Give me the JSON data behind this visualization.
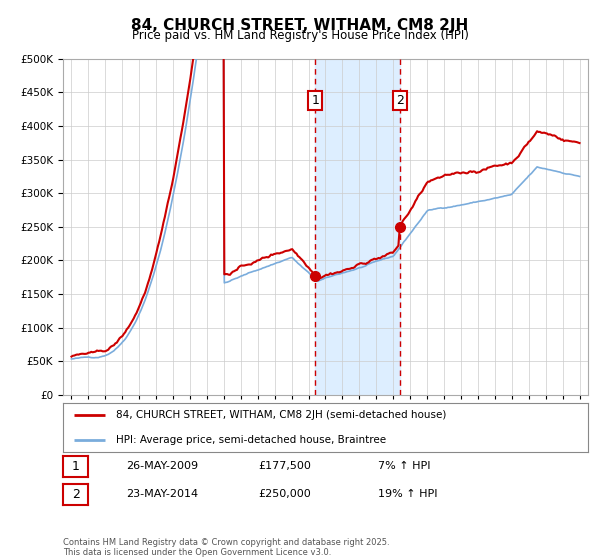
{
  "title": "84, CHURCH STREET, WITHAM, CM8 2JH",
  "subtitle": "Price paid vs. HM Land Registry's House Price Index (HPI)",
  "background_color": "#ffffff",
  "plot_bg_color": "#ffffff",
  "grid_color": "#cccccc",
  "red_line_color": "#cc0000",
  "blue_line_color": "#7aacdc",
  "shade_color": "#ddeeff",
  "dashed_line_color": "#cc0000",
  "marker1_x": 2009.4,
  "marker1_y": 177500,
  "marker2_x": 2014.4,
  "marker2_y": 250000,
  "vline1_x": 2009.4,
  "vline2_x": 2014.4,
  "shade_x1": 2009.4,
  "shade_x2": 2014.4,
  "legend_entries": [
    "84, CHURCH STREET, WITHAM, CM8 2JH (semi-detached house)",
    "HPI: Average price, semi-detached house, Braintree"
  ],
  "table_data": [
    [
      "1",
      "26-MAY-2009",
      "£177,500",
      "7% ↑ HPI"
    ],
    [
      "2",
      "23-MAY-2014",
      "£250,000",
      "19% ↑ HPI"
    ]
  ],
  "footer": "Contains HM Land Registry data © Crown copyright and database right 2025.\nThis data is licensed under the Open Government Licence v3.0.",
  "ylim": [
    0,
    500000
  ],
  "yticks": [
    0,
    50000,
    100000,
    150000,
    200000,
    250000,
    300000,
    350000,
    400000,
    450000,
    500000
  ],
  "xlim_start": 1994.5,
  "xlim_end": 2025.5,
  "xtick_years": [
    1995,
    1996,
    1997,
    1998,
    1999,
    2000,
    2001,
    2002,
    2003,
    2004,
    2005,
    2006,
    2007,
    2008,
    2009,
    2010,
    2011,
    2012,
    2013,
    2014,
    2015,
    2016,
    2017,
    2018,
    2019,
    2020,
    2021,
    2022,
    2023,
    2024,
    2025
  ]
}
